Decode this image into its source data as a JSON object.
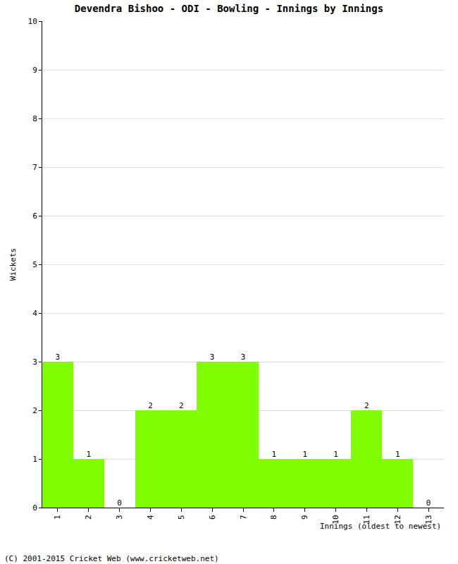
{
  "chart_data": {
    "type": "bar",
    "title": "Devendra Bishoo - ODI - Bowling - Innings by Innings",
    "x_label": "Innings (oldest to newest)",
    "y_label": "Wickets",
    "categories": [
      "1",
      "2",
      "3",
      "4",
      "5",
      "6",
      "7",
      "8",
      "9",
      "10",
      "11",
      "12",
      "13"
    ],
    "values": [
      3,
      1,
      0,
      2,
      2,
      3,
      3,
      1,
      1,
      1,
      2,
      1,
      0
    ],
    "color": "#80ff00",
    "ylim": [
      0,
      10
    ],
    "yticks": [
      0,
      1,
      2,
      3,
      4,
      5,
      6,
      7,
      8,
      9,
      10
    ],
    "grid": true,
    "data_labels": true,
    "annotations": [
      "(C) 2001-2015 Cricket Web (www.cricketweb.net)"
    ]
  }
}
